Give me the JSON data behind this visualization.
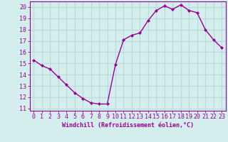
{
  "x": [
    0,
    1,
    2,
    3,
    4,
    5,
    6,
    7,
    8,
    9,
    10,
    11,
    12,
    13,
    14,
    15,
    16,
    17,
    18,
    19,
    20,
    21,
    22,
    23
  ],
  "y": [
    15.3,
    14.8,
    14.5,
    13.8,
    13.1,
    12.4,
    11.9,
    11.5,
    11.4,
    11.4,
    14.9,
    17.1,
    17.5,
    17.7,
    18.8,
    19.7,
    20.1,
    19.8,
    20.2,
    19.7,
    19.5,
    18.0,
    17.1,
    16.4
  ],
  "line_color": "#990099",
  "marker": "D",
  "marker_size": 2,
  "linewidth": 1.0,
  "xlabel": "Windchill (Refroidissement éolien,°C)",
  "xlabel_fontsize": 6,
  "ylabel_ticks": [
    11,
    12,
    13,
    14,
    15,
    16,
    17,
    18,
    19,
    20
  ],
  "xlim": [
    -0.5,
    23.5
  ],
  "ylim": [
    10.8,
    20.5
  ],
  "background_color": "#d4eeee",
  "grid_color": "#b8dada",
  "tick_label_fontsize": 6,
  "xtick_labels": [
    "0",
    "1",
    "2",
    "3",
    "4",
    "5",
    "6",
    "7",
    "8",
    "9",
    "10",
    "11",
    "12",
    "13",
    "14",
    "15",
    "16",
    "17",
    "18",
    "19",
    "20",
    "21",
    "22",
    "23"
  ]
}
